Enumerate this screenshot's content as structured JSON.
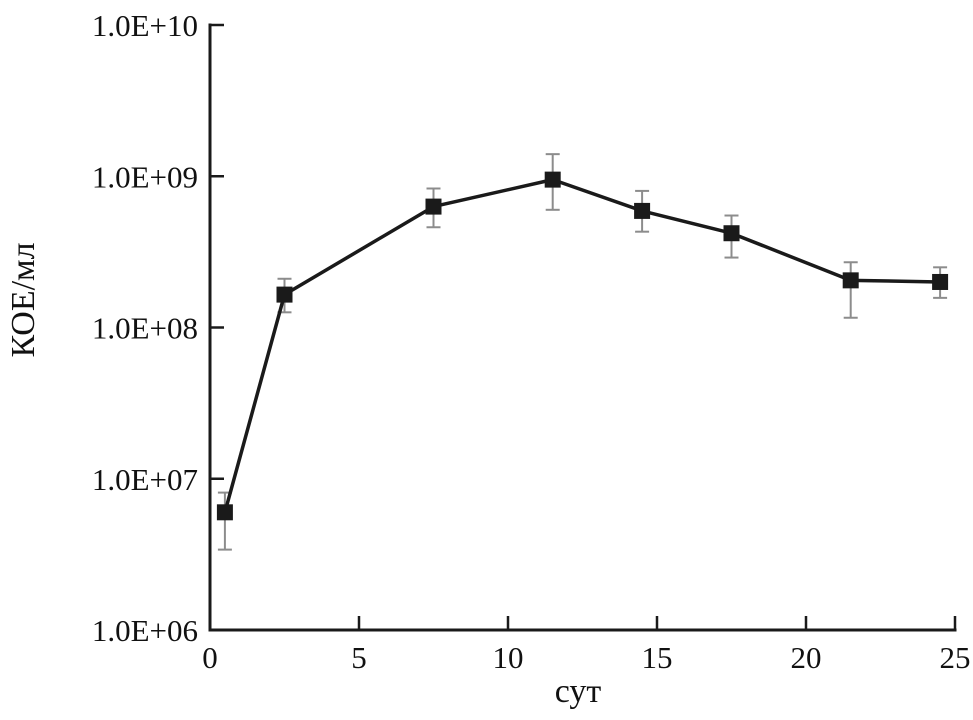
{
  "chart_data": {
    "type": "line",
    "title": "",
    "xlabel": "сут",
    "ylabel": "КОЕ/мл",
    "x": [
      0.5,
      2.5,
      7.5,
      11.5,
      14.5,
      17.5,
      21.5,
      24.5
    ],
    "y": [
      6000000.0,
      165000000.0,
      630000000.0,
      950000000.0,
      590000000.0,
      420000000.0,
      205000000.0,
      200000000.0
    ],
    "y_err_low": [
      3400000.0,
      126000000.0,
      460000000.0,
      600000000.0,
      430000000.0,
      290000000.0,
      116000000.0,
      157000000.0
    ],
    "y_err_high": [
      8100000.0,
      210000000.0,
      830000000.0,
      1400000000.0,
      800000000.0,
      550000000.0,
      270000000.0,
      250000000.0
    ],
    "xlim": [
      0,
      25
    ],
    "ylim": [
      1000000.0,
      10000000000.0
    ],
    "yscale": "log",
    "xscale": "linear",
    "x_ticks": [
      0,
      5,
      10,
      15,
      20,
      25
    ],
    "x_tick_labels": [
      "0",
      "5",
      "10",
      "15",
      "20",
      "25"
    ],
    "y_tick_values": [
      1000000.0,
      10000000.0,
      100000000.0,
      1000000000.0,
      10000000000.0
    ],
    "y_ticks": [
      "1.0E+06",
      "1.0E+07",
      "1.0E+08",
      "1.0E+09",
      "1.0E+10"
    ],
    "grid": "off",
    "legend": "none",
    "marker": "square",
    "line_color": "#1a1a1a",
    "error_bar_color": "#8c8c8c"
  }
}
